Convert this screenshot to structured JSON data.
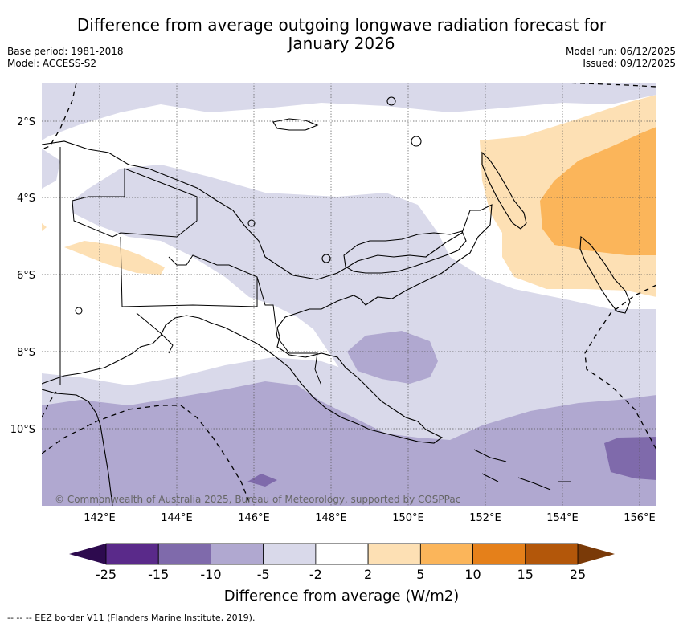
{
  "title_line1": "Difference from average outgoing longwave radiation forecast for",
  "title_line2": "January 2026",
  "base_period": "Base period: 1981-2018",
  "model": "Model: ACCESS-S2",
  "model_run": "Model run: 06/12/2025",
  "issued": "Issued: 09/12/2025",
  "lat_ticks": [
    "2°S",
    "4°S",
    "6°S",
    "8°S",
    "10°S"
  ],
  "lon_ticks": [
    "142°E",
    "144°E",
    "146°E",
    "148°E",
    "150°E",
    "152°E",
    "154°E",
    "156°E"
  ],
  "copyright": "© Commonwealth of Australia 2025, Bureau of Meteorology, supported by COSPPac",
  "colorbar": {
    "bounds": [
      "-25",
      "-15",
      "-10",
      "-5",
      "-2",
      "2",
      "5",
      "10",
      "15",
      "25"
    ],
    "colors": [
      "#5a2a8a",
      "#7f6aab",
      "#b0a8d0",
      "#d9d9ea",
      "#ffffff",
      "#fde0b4",
      "#fbb55a",
      "#e5801a",
      "#b3570a"
    ],
    "under_color": "#2d0a4e",
    "over_color": "#7a3a08",
    "title": "Difference from average (W/m2)"
  },
  "legend_note": "--  --  -- EEZ border V11 (Flanders Marine Institute, 2019).",
  "colors": {
    "lavender": "#d9d9ea",
    "purple_light": "#b0a8d0",
    "purple_mid": "#7f6aab",
    "peach": "#fde0b4",
    "orange": "#fbb55a"
  }
}
